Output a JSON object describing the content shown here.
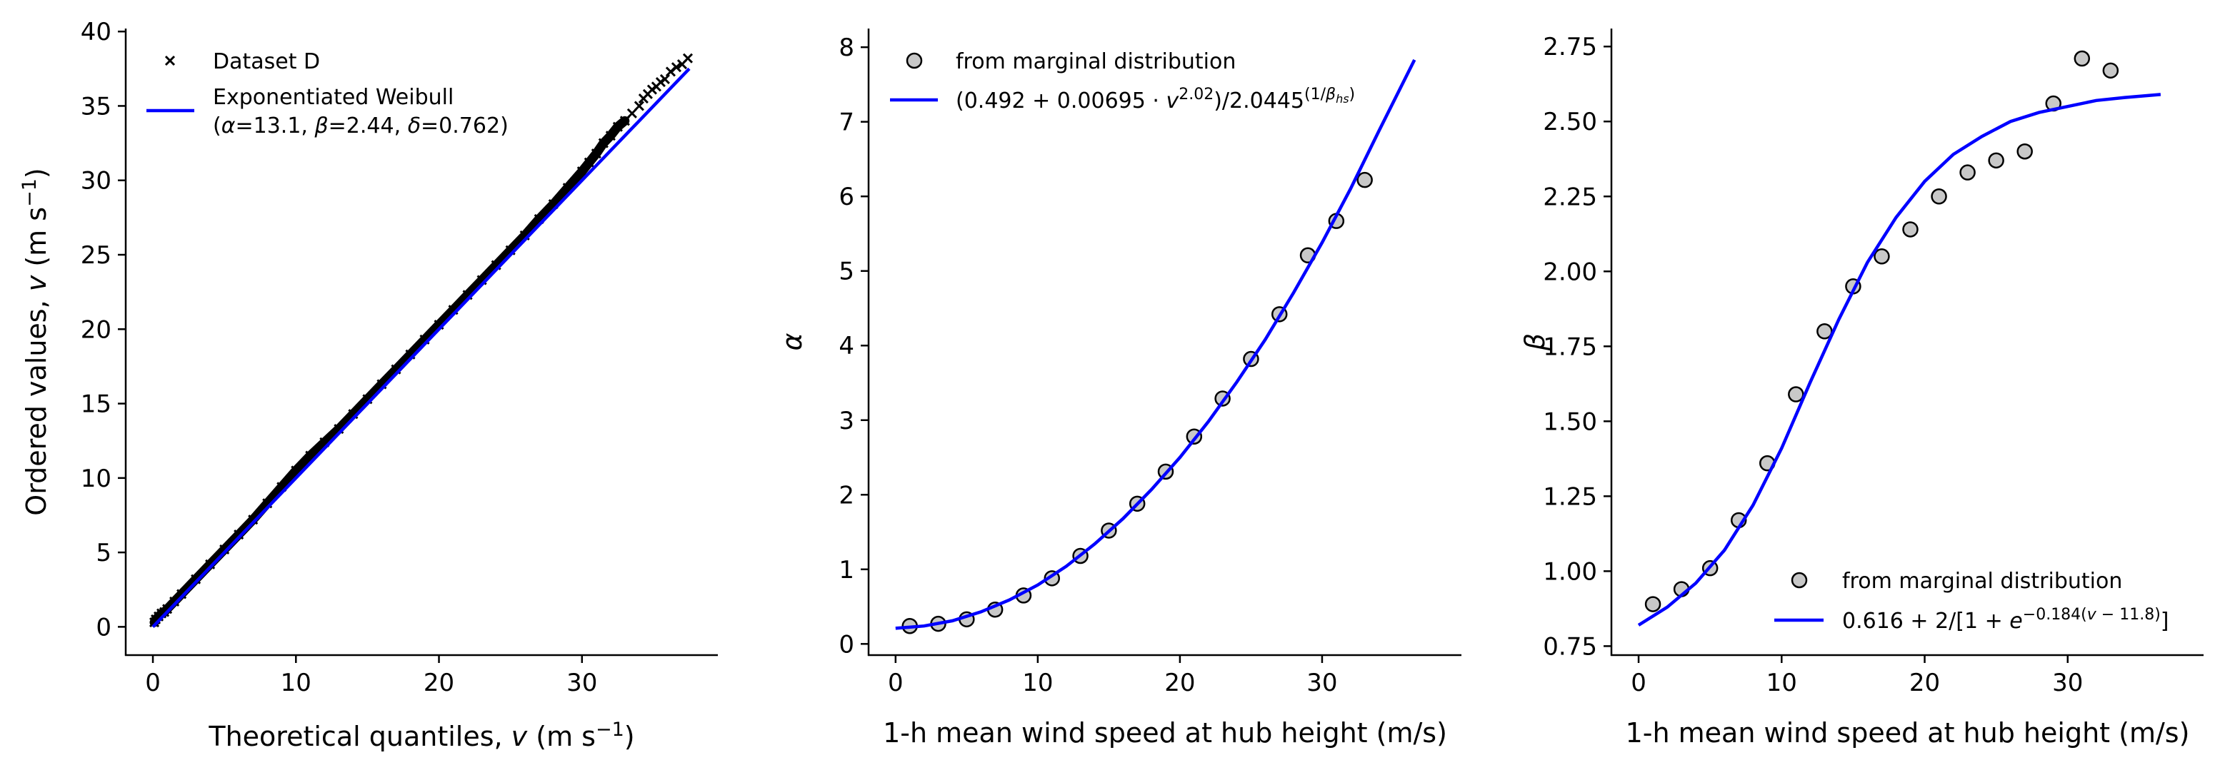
{
  "chart_data": [
    {
      "type": "scatter",
      "xlabel": "Theoretical quantiles, v (m s⁻¹)",
      "ylabel": "Ordered values, v (m s⁻¹)",
      "xlim": [
        -1.9,
        39.5
      ],
      "ylim": [
        -1.9,
        40.2
      ],
      "xticks": [
        0,
        10,
        20,
        30
      ],
      "yticks": [
        0,
        5,
        10,
        15,
        20,
        25,
        30,
        35,
        40
      ],
      "grid": false,
      "legend_position": "upper-left",
      "series": [
        {
          "name": "Dataset D",
          "marker": "x",
          "color": "#000000",
          "x": [
            0.1,
            0.2,
            0.4,
            0.6,
            0.8,
            1,
            1.5,
            2,
            3,
            4,
            5,
            6,
            7,
            8,
            9,
            10,
            11,
            12,
            13,
            14,
            15,
            16,
            17,
            18,
            19,
            20,
            21,
            22,
            23,
            24,
            25,
            26,
            27,
            28,
            29,
            30,
            30.5,
            31,
            31.5,
            32,
            32.5,
            33,
            33.5,
            34,
            34.3,
            34.6,
            34.9,
            35.2,
            35.5,
            35.8,
            36.2,
            36.6,
            37.0,
            37.4
          ],
          "y": [
            0.3,
            0.5,
            0.7,
            0.9,
            1.0,
            1.2,
            1.7,
            2.2,
            3.2,
            4.2,
            5.2,
            6.2,
            7.2,
            8.3,
            9.4,
            10.5,
            11.5,
            12.4,
            13.3,
            14.3,
            15.3,
            16.3,
            17.3,
            18.3,
            19.3,
            20.3,
            21.3,
            22.3,
            23.3,
            24.3,
            25.3,
            26.3,
            27.4,
            28.4,
            29.5,
            30.6,
            31.2,
            31.8,
            32.5,
            33.0,
            33.6,
            34.0,
            34.5,
            35.0,
            35.5,
            35.8,
            36.1,
            36.3,
            36.6,
            36.8,
            37.3,
            37.6,
            37.8,
            38.2
          ]
        },
        {
          "name": "Exponentiated Weibull\n(α=13.1, β=2.44, δ=0.762)",
          "line": true,
          "color": "#0000ff",
          "x": [
            0,
            37.5
          ],
          "y": [
            0,
            37.5
          ]
        }
      ]
    },
    {
      "type": "scatter",
      "xlabel": "1-h mean wind speed at hub height (m/s)",
      "ylabel": "α",
      "xlim": [
        -1.9,
        39.8
      ],
      "ylim": [
        -0.15,
        8.25
      ],
      "xticks": [
        0,
        10,
        20,
        30
      ],
      "yticks": [
        0,
        1,
        2,
        3,
        4,
        5,
        6,
        7,
        8
      ],
      "grid": false,
      "legend_position": "upper-left",
      "series": [
        {
          "name": "from marginal distribution",
          "marker": "o",
          "color": "#c8c8c8",
          "x": [
            1,
            3,
            5,
            7,
            9,
            11,
            13,
            15,
            17,
            19,
            21,
            23,
            25,
            27,
            29,
            31,
            33
          ],
          "y": [
            0.24,
            0.27,
            0.33,
            0.46,
            0.65,
            0.88,
            1.18,
            1.52,
            1.88,
            2.31,
            2.78,
            3.29,
            3.82,
            4.42,
            5.21,
            5.67,
            6.22
          ]
        },
        {
          "name": "(0.492 + 0.00695 · v^2.02)/2.0445^(1/βhs)",
          "line": true,
          "color": "#0000ff",
          "x": [
            0,
            2,
            4,
            6,
            8,
            10,
            12,
            14,
            16,
            18,
            20,
            22,
            24,
            26,
            28,
            30,
            32,
            34,
            36.5
          ],
          "y": [
            0.21,
            0.24,
            0.31,
            0.43,
            0.59,
            0.79,
            1.04,
            1.34,
            1.68,
            2.07,
            2.5,
            2.98,
            3.51,
            4.08,
            4.71,
            5.38,
            6.1,
            6.88,
            7.83
          ]
        }
      ]
    },
    {
      "type": "scatter",
      "xlabel": "1-h mean wind speed at hub height (m/s)",
      "ylabel": "β",
      "xlim": [
        -1.9,
        39.5
      ],
      "ylim": [
        0.72,
        2.81
      ],
      "xticks": [
        0,
        10,
        20,
        30
      ],
      "yticks": [
        0.75,
        1.0,
        1.25,
        1.5,
        1.75,
        2.0,
        2.25,
        2.5,
        2.75
      ],
      "ytick_labels": [
        "0.75",
        "1.00",
        "1.25",
        "1.50",
        "1.75",
        "2.00",
        "2.25",
        "2.50",
        "2.75"
      ],
      "grid": false,
      "legend_position": "lower-right",
      "series": [
        {
          "name": "from marginal distribution",
          "marker": "o",
          "color": "#c8c8c8",
          "x": [
            1,
            3,
            5,
            7,
            9,
            11,
            13,
            15,
            17,
            19,
            21,
            23,
            25,
            27,
            29,
            31,
            33
          ],
          "y": [
            0.89,
            0.94,
            1.01,
            1.17,
            1.36,
            1.59,
            1.8,
            1.95,
            2.05,
            2.14,
            2.25,
            2.33,
            2.37,
            2.4,
            2.56,
            2.71,
            2.67
          ]
        },
        {
          "name": "0.616 + 2/[1 + e^(−0.184(v − 11.8))]",
          "line": true,
          "color": "#0000ff",
          "x": [
            0,
            2,
            4,
            6,
            8,
            10,
            12,
            14,
            16,
            18,
            20,
            22,
            24,
            26,
            28,
            30,
            32,
            34,
            36.5
          ],
          "y": [
            0.82,
            0.88,
            0.96,
            1.07,
            1.22,
            1.41,
            1.63,
            1.84,
            2.03,
            2.18,
            2.3,
            2.39,
            2.45,
            2.5,
            2.53,
            2.55,
            2.57,
            2.58,
            2.59
          ]
        }
      ]
    }
  ]
}
